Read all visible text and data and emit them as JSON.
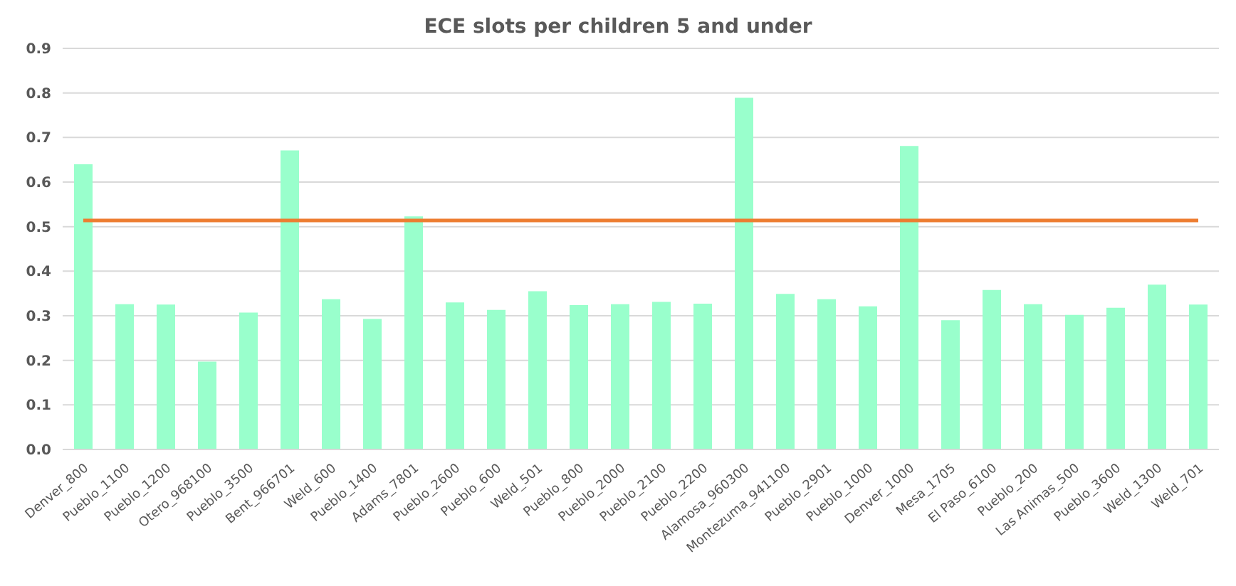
{
  "chart_data": {
    "type": "bar",
    "title": "ECE slots per children 5 and under",
    "categories": [
      "Denver_800",
      "Pueblo_1100",
      "Pueblo_1200",
      "Otero_968100",
      "Pueblo_3500",
      "Bent_966701",
      "Weld_600",
      "Pueblo_1400",
      "Adams_7801",
      "Pueblo_2600",
      "Pueblo_600",
      "Weld_501",
      "Pueblo_800",
      "Pueblo_2000",
      "Pueblo_2100",
      "Pueblo_2200",
      "Alamosa_960300",
      "Montezuma_941100",
      "Pueblo_2901",
      "Pueblo_1000",
      "Denver_1000",
      "Mesa_1705",
      "El Paso_6100",
      "Pueblo_200",
      "Las Animas_500",
      "Pueblo_3600",
      "Weld_1300",
      "Weld_701"
    ],
    "values": [
      0.64,
      0.326,
      0.325,
      0.197,
      0.307,
      0.671,
      0.337,
      0.293,
      0.523,
      0.33,
      0.313,
      0.355,
      0.324,
      0.326,
      0.331,
      0.327,
      0.789,
      0.349,
      0.337,
      0.321,
      0.681,
      0.29,
      0.358,
      0.326,
      0.302,
      0.318,
      0.37,
      0.325
    ],
    "color": "#99ffcc",
    "ylim": [
      0,
      0.9
    ],
    "yticks": [
      {
        "value": 0,
        "label": "0.0"
      },
      0.1,
      0.2,
      0.3,
      0.4,
      0.5,
      0.6,
      0.7,
      0.8,
      0.9
    ],
    "grid": "y",
    "ref_lines": [
      {
        "axis": "y",
        "value": 0.514,
        "color": "#ed7d31"
      }
    ]
  }
}
